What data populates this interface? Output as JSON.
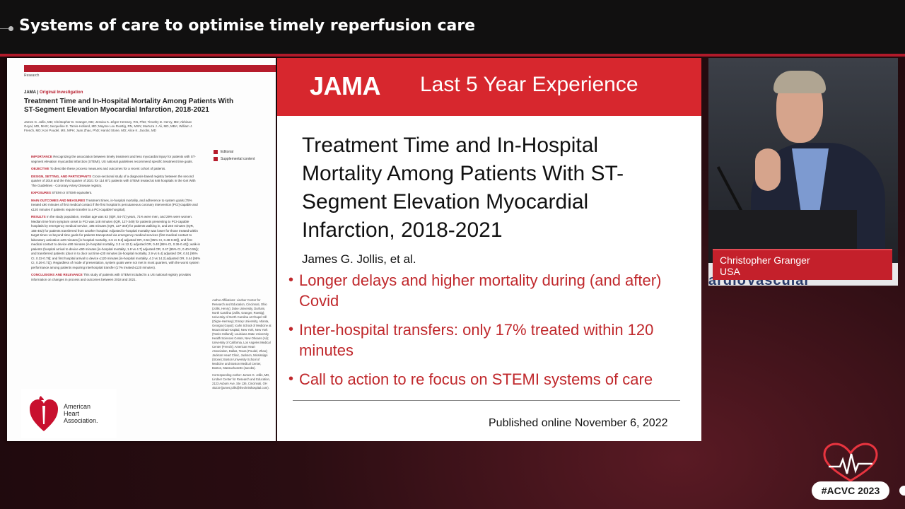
{
  "header": {
    "title": "Systems of care to optimise timely reperfusion care"
  },
  "paper": {
    "section": "Research",
    "journal": "JAMA",
    "article_type": "Original Investigation",
    "title": "Treatment Time and In-Hospital Mortality Among Patients With ST-Segment Elevation Myocardial Infarction, 2018-2021",
    "authors": "James G. Jollis, MD; Christopher B. Granger, MD; Jessica K. Zègre-Hemsey, RN, PhD; Timothy D. Henry, MD; Abhinav Goyal, MD, MHS; Jacqueline E. Tamis-Holland, MD; Mayme Lou Roettig, RN, MSN; Murtuza J. Ali, MD, MBA; William J. French, MD; Kori Poudel, MS, MPH; Juan Zhao, PhD; Harold Stone, MD; Alice K. Jacobs, MD",
    "abstract": [
      {
        "label": "IMPORTANCE",
        "text": "Recognizing the association between timely treatment and less myocardial injury for patients with ST-segment elevation myocardial infarction (STEMI), US national guidelines recommend specific treatment time goals."
      },
      {
        "label": "OBJECTIVE",
        "text": "To describe these process measures and outcomes for a recent cohort of patients."
      },
      {
        "label": "DESIGN, SETTING, AND PARTICIPANTS",
        "text": "Cross-sectional study of a diagnosis-based registry between the second quarter of 2018 and the third quarter of 2021 for 114 871 patients with STEMI treated at 648 hospitals in the Get With The Guidelines - Coronary Artery Disease registry."
      },
      {
        "label": "EXPOSURES",
        "text": "STEMI or STEMI equivalent."
      },
      {
        "label": "MAIN OUTCOMES AND MEASURES",
        "text": "Treatment times, in-hospital mortality, and adherence to system goals (75% treated ≤90 minutes of first medical contact if the first hospital is percutaneous coronary intervention [PCI]-capable and ≤120 minutes if patients require transfer to a PCI-capable hospital)."
      },
      {
        "label": "RESULTS",
        "text": "In the study population, median age was 63 (IQR, 54-72) years, 71% were men, and 29% were women. Median time from symptom onset to PCI was 148 minutes (IQR, 127-349) for patients presenting to PCI-capable hospitals by emergency medical service, 195 minutes (IQR, 127-349) for patients walking in, and 240 minutes (IQR, 166-402) for patients transferred from another hospital. Adjusted in-hospital mortality was lower for those treated within target times vs beyond time goals for patients transported via emergency medical services (first medical contact to laboratory activation ≤20 minutes [in-hospital mortality, 3.6 vs 9.2] adjusted OR, 0.54 [95% CI, 0.48-0.60]), and first medical contact to device ≤90 minutes (in-hospital mortality, 3.3 vs 12.1) adjusted OR, 0.40 [95% CI, 0.36-0.44]); walk-in patients (hospital arrival to device ≤90 minutes [in-hospital mortality, 1.8 vs 4.7] adjusted OR, 0.47 [95% CI, 0.40-0.55]); and transferred patients (door in to door out time ≤30 minutes [in-hospital mortality, 2.9 vs 6.4] adjusted OR, 0.51 [95% CI, 0.32-0.78]; and first hospital arrival to device ≤120 minutes [in-hospital mortality, 4.3 vs 14.2] adjusted OR, 0.44 [95% CI, 0.26-0.71]). Regardless of mode of presentation, system goals were not met in most quarters, with the worst system performance among patients requiring interhospital transfer (17% treated ≤120 minutes)."
      },
      {
        "label": "CONCLUSIONS AND RELEVANCE",
        "text": "This study of patients with STEMI included in a US national registry provides information on changes in process and outcomes between 2018 and 2021."
      }
    ],
    "side_links": [
      "Editorial",
      "Supplemental content"
    ],
    "affiliations": "Author Affiliations: Lindner Center for Research and Education, Cincinnati, Ohio (Jollis, Henry); Duke University, Durham, North Carolina (Jollis, Granger, Roettig); University of North Carolina at Chapel Hill (Zègre-Hemsey); Emory University, Atlanta, Georgia (Goyal); Icahn School of Medicine at Mount Sinai Hospital, New York, New York (Tamis-Holland); Louisiana State University Health Sciences Center, New Orleans (Ali); University of California, Los Angeles Medical Center (French); American Heart Association, Dallas, Texas (Poudel, Zhao); Jackson Heart Clinic, Jackson, Mississippi (Stone); Boston University School of Medicine and Boston Medical Center, Boston, Massachusetts (Jacobs).",
    "corresponding": "Corresponding Author: James G. Jollis, MD, Lindner Center for Research and Education, 2123 Auburn Ave, Ste 136, Cincinnati, OH 45219 (james.jollis@thechristhospital.com).",
    "aha_logo_text": [
      "American",
      "Heart",
      "Association."
    ]
  },
  "slide": {
    "journal_logo": "JAMA",
    "banner_title": "Last 5 Year Experience",
    "heading": "Treatment Time and In-Hospital Mortality Among Patients With ST-Segment Elevation Myocardial Infarction, 2018-2021",
    "byline": "James G. Jollis, et al.",
    "bullets": [
      "Longer delays and higher mortality during (and after) Covid",
      "Inter-hospital transfers: only 17% treated within 120 minutes",
      "Call to action to re focus on STEMI systems of care"
    ],
    "published": "Published online November 6, 2022"
  },
  "speaker": {
    "name": "Christopher Granger",
    "country": "USA",
    "podium_text": "ardioVascular"
  },
  "event": {
    "hashtag": "#ACVC 2023"
  },
  "colors": {
    "accent_red": "#d7272e",
    "bullet_red": "#c0282c",
    "header_bg": "#111010"
  }
}
